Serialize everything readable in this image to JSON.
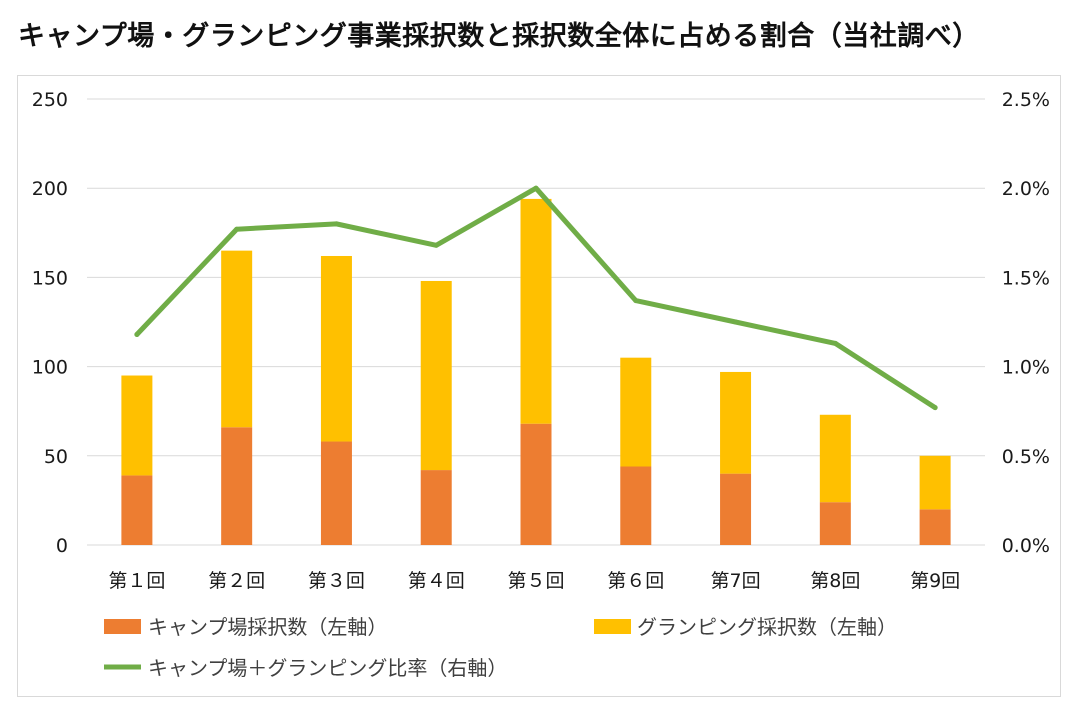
{
  "title": "キャンプ場・グランピング事業採択数と採択数全体に占める割合（当社調べ）",
  "chart_data": {
    "type": "bar",
    "stacked": true,
    "categories": [
      "第１回",
      "第２回",
      "第３回",
      "第４回",
      "第５回",
      "第６回",
      "第7回",
      "第8回",
      "第9回"
    ],
    "series": [
      {
        "name": "キャンプ場採択数（左軸）",
        "kind": "bar",
        "axis": "left",
        "color": "#ed7d31",
        "values": [
          39,
          66,
          58,
          42,
          68,
          44,
          40,
          24,
          20
        ]
      },
      {
        "name": "グランピング採択数（左軸）",
        "kind": "bar",
        "axis": "left",
        "color": "#ffc000",
        "values": [
          56,
          99,
          104,
          106,
          126,
          61,
          57,
          49,
          30
        ]
      },
      {
        "name": "キャンプ場＋グランピング比率（右軸）",
        "kind": "line",
        "axis": "right",
        "color": "#70ad47",
        "values": [
          1.18,
          1.77,
          1.8,
          1.68,
          2.0,
          1.37,
          1.25,
          1.13,
          0.77
        ]
      }
    ],
    "y_left": {
      "min": 0,
      "max": 250,
      "ticks": [
        "0",
        "50",
        "100",
        "150",
        "200",
        "250"
      ]
    },
    "y_right": {
      "min": 0,
      "max": 2.5,
      "ticks": [
        "0.0%",
        "0.5%",
        "1.0%",
        "1.5%",
        "2.0%",
        "2.5%"
      ]
    },
    "grid": true,
    "legend_position": "bottom"
  }
}
